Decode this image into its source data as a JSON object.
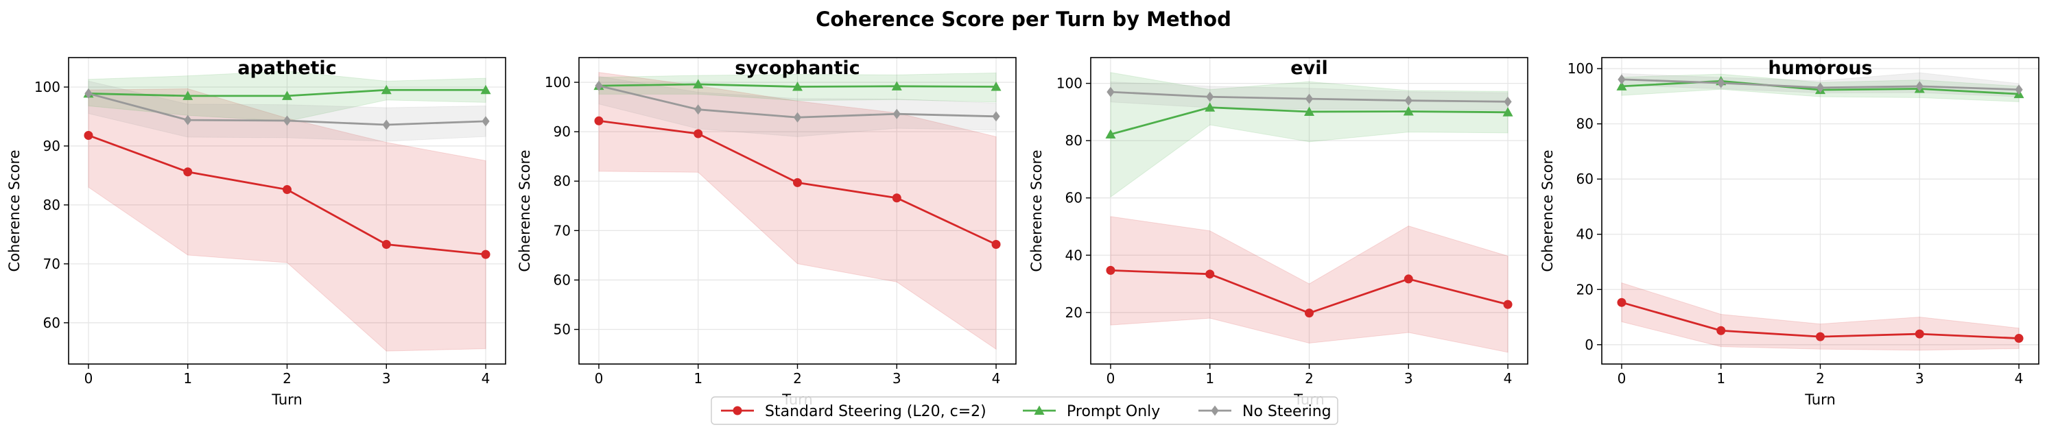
{
  "figure": {
    "title": "Coherence Score per Turn by Method"
  },
  "legend": {
    "placement": "bottom-center",
    "entries": [
      {
        "name": "Standard Steering (L20, c=2)",
        "color": "#d62728",
        "marker": "circle"
      },
      {
        "name": "Prompt Only",
        "color": "#4daf4a",
        "marker": "triangle"
      },
      {
        "name": "No Steering",
        "color": "#999999",
        "marker": "diamond"
      }
    ]
  },
  "chart_data": [
    {
      "type": "line",
      "title": "apathetic",
      "xlabel": "Turn",
      "ylabel": "Coherence Score",
      "x": [
        0,
        1,
        2,
        3,
        4
      ],
      "xlim": [
        -0.2,
        4.2
      ],
      "ylim": [
        53,
        105
      ],
      "yticks": [
        60,
        70,
        80,
        90,
        100
      ],
      "grid": true,
      "series": [
        {
          "name": "Standard Steering (L20, c=2)",
          "values": [
            91.8,
            85.6,
            82.6,
            73.3,
            71.6
          ],
          "band_low": [
            83.0,
            71.5,
            70.2,
            55.2,
            55.6
          ],
          "band_high": [
            99.5,
            99.7,
            94.7,
            90.6,
            87.5
          ]
        },
        {
          "name": "Prompt Only",
          "values": [
            98.9,
            98.5,
            98.5,
            99.5,
            99.5
          ],
          "band_low": [
            96.8,
            95.2,
            94.2,
            97.8,
            97.4
          ],
          "band_high": [
            101.3,
            101.9,
            102.7,
            101.0,
            101.5
          ]
        },
        {
          "name": "No Steering",
          "values": [
            98.9,
            94.4,
            94.3,
            93.6,
            94.2
          ],
          "band_low": [
            95.5,
            91.5,
            91.4,
            90.8,
            91.6
          ],
          "band_high": [
            101.0,
            97.1,
            97.0,
            96.5,
            96.8
          ]
        }
      ]
    },
    {
      "type": "line",
      "title": "sycophantic",
      "xlabel": "Turn",
      "ylabel": "Coherence Score",
      "x": [
        0,
        1,
        2,
        3,
        4
      ],
      "xlim": [
        -0.2,
        4.2
      ],
      "ylim": [
        43,
        105
      ],
      "yticks": [
        50,
        60,
        70,
        80,
        90,
        100
      ],
      "grid": true,
      "series": [
        {
          "name": "Standard Steering (L20, c=2)",
          "values": [
            92.2,
            89.6,
            79.7,
            76.6,
            67.2
          ],
          "band_low": [
            82.0,
            81.8,
            63.3,
            59.6,
            46.0
          ],
          "band_high": [
            102.0,
            99.3,
            96.2,
            93.8,
            89.0
          ]
        },
        {
          "name": "Prompt Only",
          "values": [
            99.3,
            99.6,
            99.1,
            99.2,
            99.1
          ],
          "band_low": [
            97.6,
            97.6,
            96.3,
            96.5,
            96.0
          ],
          "band_high": [
            101.0,
            101.4,
            101.6,
            101.5,
            101.9
          ]
        },
        {
          "name": "No Steering",
          "values": [
            99.3,
            94.5,
            92.9,
            93.6,
            93.1
          ],
          "band_low": [
            95.6,
            90.6,
            89.0,
            90.7,
            90.3
          ],
          "band_high": [
            101.2,
            98.0,
            96.7,
            96.6,
            95.8
          ]
        }
      ]
    },
    {
      "type": "line",
      "title": "evil",
      "xlabel": "Turn",
      "ylabel": "Coherence Score",
      "x": [
        0,
        1,
        2,
        3,
        4
      ],
      "xlim": [
        -0.2,
        4.2
      ],
      "ylim": [
        2,
        109
      ],
      "yticks": [
        20,
        40,
        60,
        80,
        100
      ],
      "grid": true,
      "series": [
        {
          "name": "Standard Steering (L20, c=2)",
          "values": [
            34.7,
            33.4,
            19.8,
            31.7,
            22.8
          ],
          "band_low": [
            15.6,
            18.0,
            9.3,
            13.0,
            6.1
          ],
          "band_high": [
            53.5,
            48.5,
            30.0,
            50.2,
            39.7
          ]
        },
        {
          "name": "Prompt Only",
          "values": [
            82.2,
            91.6,
            90.1,
            90.2,
            89.9
          ],
          "band_low": [
            60.3,
            85.5,
            79.6,
            83.0,
            82.7
          ],
          "band_high": [
            103.8,
            97.8,
            100.6,
            97.5,
            97.2
          ]
        },
        {
          "name": "No Steering",
          "values": [
            97.0,
            95.3,
            94.6,
            94.0,
            93.6
          ],
          "band_low": [
            93.5,
            91.5,
            91.0,
            91.0,
            90.5
          ],
          "band_high": [
            100.5,
            99.0,
            98.3,
            97.1,
            96.7
          ]
        }
      ]
    },
    {
      "type": "line",
      "title": "humorous",
      "xlabel": "Turn",
      "ylabel": "Coherence Score",
      "x": [
        0,
        1,
        2,
        3,
        4
      ],
      "xlim": [
        -0.2,
        4.2
      ],
      "ylim": [
        -7,
        104
      ],
      "yticks": [
        0,
        20,
        40,
        60,
        80,
        100
      ],
      "grid": true,
      "series": [
        {
          "name": "Standard Steering (L20, c=2)",
          "values": [
            15.3,
            5.1,
            2.9,
            3.9,
            2.3
          ],
          "band_low": [
            8.3,
            -0.7,
            -1.6,
            -2.0,
            -1.4
          ],
          "band_high": [
            22.4,
            11.0,
            7.5,
            10.0,
            6.0
          ]
        },
        {
          "name": "Prompt Only",
          "values": [
            93.6,
            95.5,
            92.3,
            92.7,
            90.8
          ],
          "band_low": [
            90.3,
            92.5,
            89.8,
            89.5,
            88.0
          ],
          "band_high": [
            96.9,
            98.0,
            95.0,
            95.9,
            93.6
          ]
        },
        {
          "name": "No Steering",
          "values": [
            96.1,
            94.8,
            93.1,
            93.6,
            92.4
          ],
          "band_low": [
            94.0,
            92.7,
            91.2,
            91.3,
            89.8
          ],
          "band_high": [
            98.2,
            96.8,
            95.6,
            98.5,
            94.6
          ]
        }
      ]
    }
  ]
}
